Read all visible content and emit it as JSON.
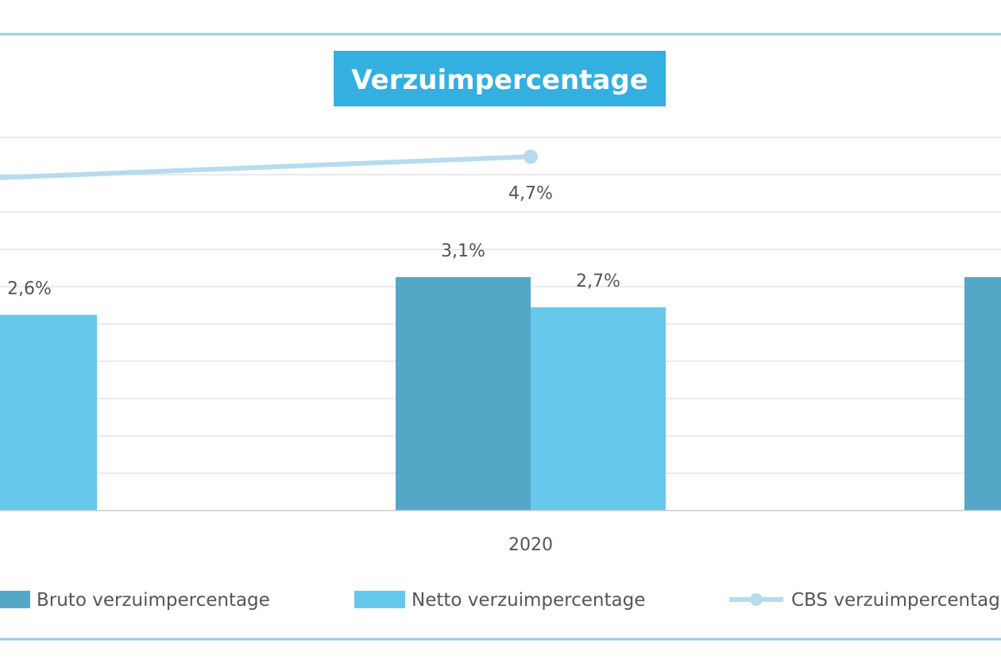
{
  "chart_data": {
    "type": "bar",
    "title": "Verzuimpercentage",
    "categories": [
      "",
      "2020",
      ""
    ],
    "series": [
      {
        "name": "Bruto verzuimpercentage",
        "kind": "bar",
        "color": "#55a7c8",
        "values": [
          null,
          3.1,
          3.1
        ],
        "labels": [
          "",
          "3,1%",
          ""
        ]
      },
      {
        "name": "Netto verzuimpercentage",
        "kind": "bar",
        "color": "#66c9ec",
        "values": [
          2.6,
          2.7,
          null
        ],
        "labels": [
          "2,6%",
          "2,7%",
          ""
        ]
      },
      {
        "name": "CBS verzuimpercentage",
        "kind": "line",
        "color": "#b6dcee",
        "values": [
          4.4,
          4.7,
          null
        ],
        "labels": [
          "",
          "4,7%",
          ""
        ]
      }
    ],
    "ylim": [
      0,
      5
    ],
    "grid": true,
    "legend": "bottom",
    "colors": {
      "title_bg": "#33b0e0",
      "frame": "#8fcfe6",
      "grid": "#dddddd",
      "axis": "#cccccc"
    }
  }
}
